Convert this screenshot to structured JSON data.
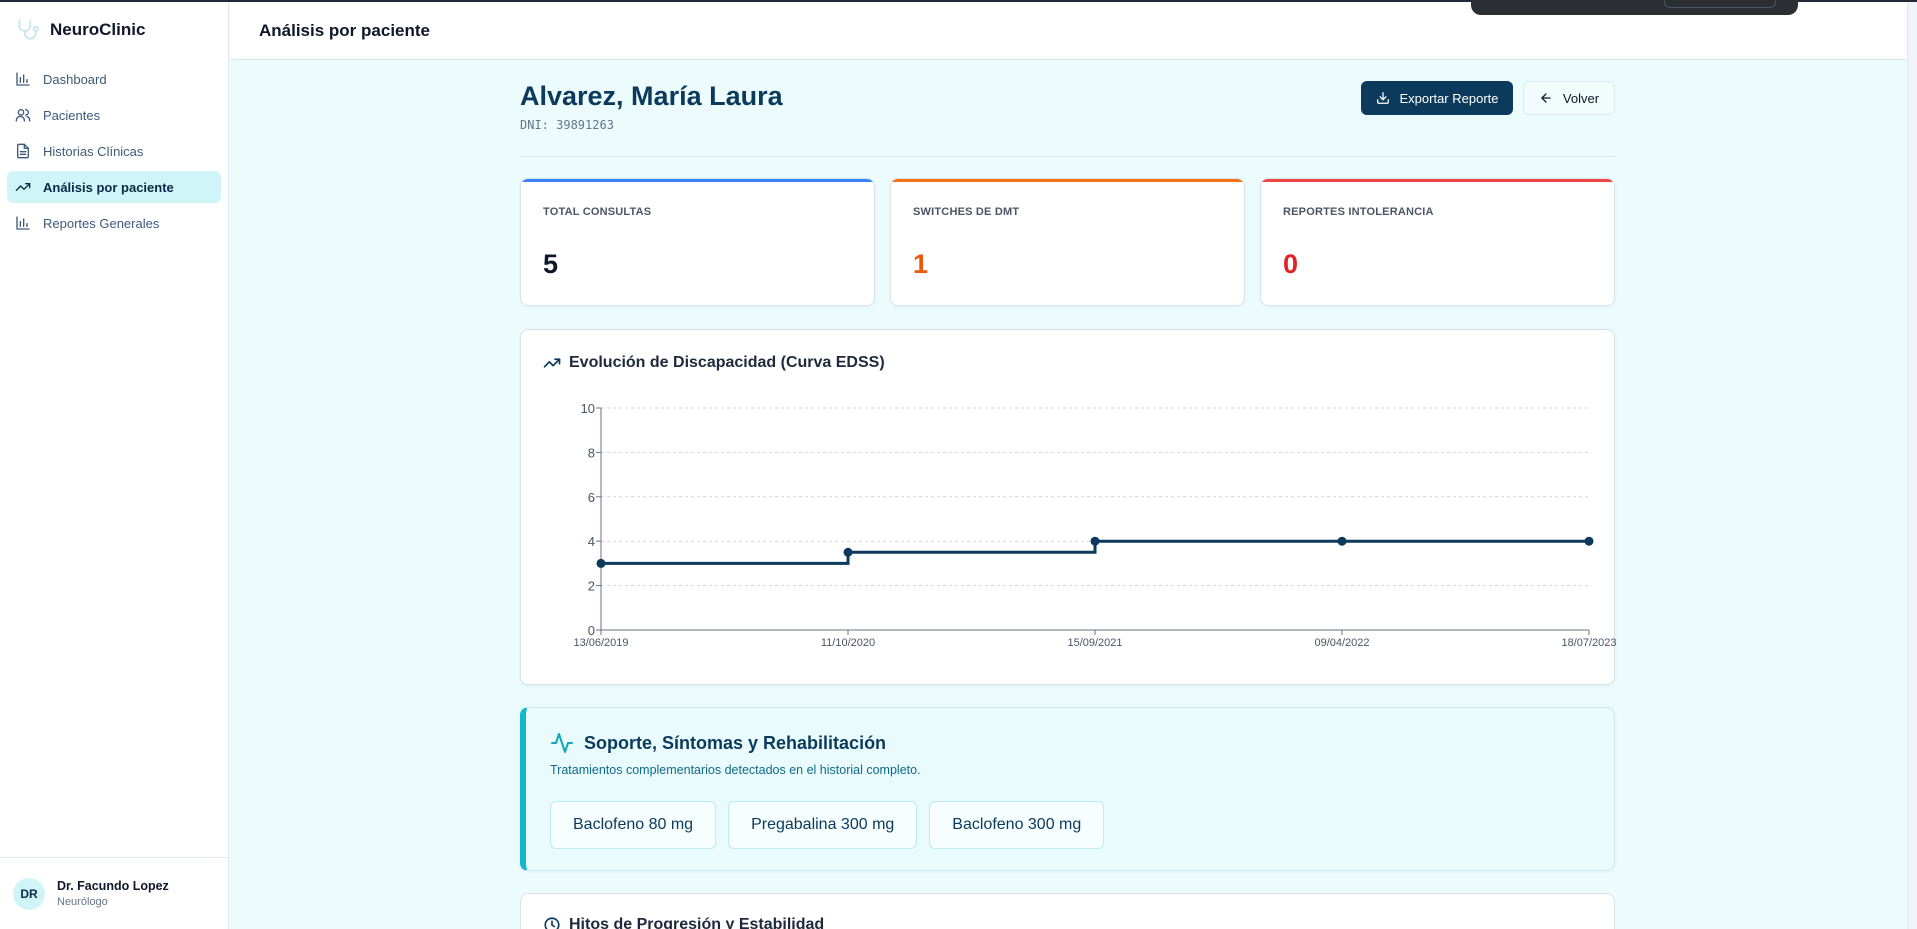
{
  "app": {
    "name": "NeuroClinic"
  },
  "sidebar": {
    "items": [
      {
        "label": "Dashboard",
        "icon": "bar-chart-icon"
      },
      {
        "label": "Pacientes",
        "icon": "users-icon"
      },
      {
        "label": "Historias Clínicas",
        "icon": "file-text-icon"
      },
      {
        "label": "Análisis por paciente",
        "icon": "trending-up-icon",
        "active": true
      },
      {
        "label": "Reportes Generales",
        "icon": "bar-chart-icon"
      }
    ],
    "user": {
      "initials": "DR",
      "name": "Dr. Facundo Lopez",
      "role": "Neurólogo"
    }
  },
  "header": {
    "title": "Análisis por paciente"
  },
  "patient": {
    "name": "Alvarez, María Laura",
    "dni": "DNI: 39891263",
    "export_label": "Exportar Reporte",
    "back_label": "Volver"
  },
  "stats": [
    {
      "label": "TOTAL CONSULTAS",
      "value": "5",
      "color": "#0f172a",
      "accent": "#3b82f6"
    },
    {
      "label": "SWITCHES DE DMT",
      "value": "1",
      "color": "#ea580c",
      "accent": "#f97316"
    },
    {
      "label": "REPORTES INTOLERANCIA",
      "value": "0",
      "color": "#dc2626",
      "accent": "#ef4444"
    }
  ],
  "chart": {
    "title": "Evolución de Discapacidad (Curva EDSS)"
  },
  "chart_data": {
    "type": "line",
    "step": true,
    "x": [
      "13/06/2019",
      "11/10/2020",
      "15/09/2021",
      "09/04/2022",
      "18/07/2023"
    ],
    "series": [
      {
        "values": [
          3,
          3.5,
          4,
          4,
          4
        ]
      }
    ],
    "yticks": [
      0,
      2,
      4,
      6,
      8,
      10
    ],
    "ylim": [
      0,
      10
    ],
    "grid": true,
    "color": "#0b3a5c"
  },
  "support": {
    "title": "Soporte, Síntomas y Rehabilitación",
    "subtitle": "Tratamientos complementarios detectados en el historial completo.",
    "chips": [
      "Baclofeno 80 mg",
      "Pregabalina 300 mg",
      "Baclofeno 300 mg"
    ]
  },
  "hitos": {
    "title": "Hitos de Progresión y Estabilidad"
  }
}
